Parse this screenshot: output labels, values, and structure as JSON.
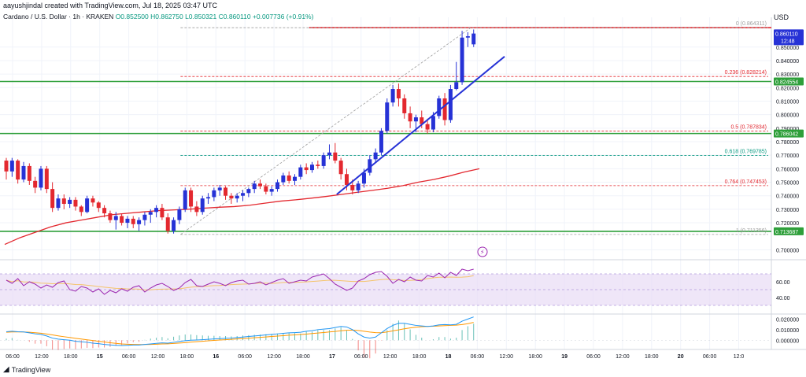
{
  "header": {
    "credit": "aayushjindal created with TradingView.com, Jul 18, 2025 03:47 UTC",
    "symbol": "Cardano / U.S. Dollar · 1h · KRAKEN",
    "ohlc": "O0.852500 H0.862750 L0.850321 C0.860110 +0.007736 (+0.91%)",
    "currency": "USD"
  },
  "footer": {
    "brand": "TradingView",
    "logo_icon": "tradingview-logo-icon"
  },
  "colors": {
    "up": "#2632d6",
    "down": "#e3282f",
    "green_line": "#2e9f3a",
    "red_line": "#e3282f",
    "sma": "#e3282f",
    "trend": "#2632d6",
    "fib": "#e3282f",
    "rsi": "#9c27b0",
    "rsi_band": "#e8dcf5",
    "rsi_ma": "#f5c46b",
    "macd": "#2196f3",
    "signal": "#ff9800",
    "hist": "#26a69a"
  },
  "chart_data": {
    "type": "candlestick",
    "price_axis": {
      "min": 0.695,
      "max": 0.872,
      "ticks": [
        "0.850000",
        "0.840000",
        "0.830000",
        "0.820000",
        "0.810000",
        "0.800000",
        "0.790000",
        "0.780000",
        "0.770000",
        "0.760000",
        "0.750000",
        "0.740000",
        "0.730000",
        "0.720000",
        "0.700000"
      ],
      "tick_values": [
        0.85,
        0.84,
        0.83,
        0.82,
        0.81,
        0.8,
        0.79,
        0.78,
        0.77,
        0.76,
        0.75,
        0.74,
        0.73,
        0.72,
        0.7
      ]
    },
    "price_badges": [
      {
        "value": 0.86011,
        "label": "0.860110",
        "sub": "12:48",
        "color": "#2632d6"
      },
      {
        "value": 0.824554,
        "label": "0.824554",
        "color": "#2e9f3a"
      },
      {
        "value": 0.786042,
        "label": "0.786042",
        "color": "#2e9f3a"
      },
      {
        "value": 0.713687,
        "label": "0.713687",
        "color": "#2e9f3a"
      }
    ],
    "horizontal_lines": [
      {
        "value": 0.864311,
        "color": "#e3282f",
        "x_start": 66
      },
      {
        "value": 0.824554,
        "color": "#2e9f3a",
        "x_start": 0
      },
      {
        "value": 0.786042,
        "color": "#2e9f3a",
        "x_start": 0
      },
      {
        "value": 0.713687,
        "color": "#2e9f3a",
        "x_start": 0
      }
    ],
    "fibonacci": [
      {
        "level": "0",
        "price": "0.864311",
        "value": 0.864311
      },
      {
        "level": "0.236",
        "price": "0.828214",
        "value": 0.828214
      },
      {
        "level": "0.5",
        "price": "0.787834",
        "value": 0.787834
      },
      {
        "level": "0.618",
        "price": "0.769785",
        "value": 0.769785
      },
      {
        "level": "0.764",
        "price": "0.747453",
        "value": 0.747453
      },
      {
        "level": "1",
        "price": "0.711356",
        "value": 0.711356
      }
    ],
    "time_labels": [
      "06:00",
      "12:00",
      "18:00",
      "15",
      "06:00",
      "12:00",
      "18:00",
      "16",
      "06:00",
      "12:00",
      "18:00",
      "17",
      "06:00",
      "12:00",
      "18:00",
      "18",
      "06:00",
      "12:00",
      "18:00",
      "19",
      "06:00",
      "12:00",
      "18:00",
      "20",
      "06:00",
      "12:0"
    ],
    "candles": [
      [
        0.766,
        0.768,
        0.752,
        0.758
      ],
      [
        0.758,
        0.768,
        0.754,
        0.766
      ],
      [
        0.766,
        0.767,
        0.749,
        0.752
      ],
      [
        0.752,
        0.765,
        0.75,
        0.762
      ],
      [
        0.762,
        0.764,
        0.748,
        0.751
      ],
      [
        0.751,
        0.754,
        0.742,
        0.746
      ],
      [
        0.746,
        0.762,
        0.744,
        0.76
      ],
      [
        0.76,
        0.762,
        0.742,
        0.745
      ],
      [
        0.745,
        0.75,
        0.728,
        0.731
      ],
      [
        0.731,
        0.741,
        0.729,
        0.738
      ],
      [
        0.738,
        0.741,
        0.73,
        0.734
      ],
      [
        0.734,
        0.739,
        0.731,
        0.737
      ],
      [
        0.737,
        0.739,
        0.729,
        0.732
      ],
      [
        0.732,
        0.733,
        0.725,
        0.728
      ],
      [
        0.728,
        0.74,
        0.727,
        0.738
      ],
      [
        0.738,
        0.74,
        0.732,
        0.735
      ],
      [
        0.735,
        0.736,
        0.728,
        0.731
      ],
      [
        0.731,
        0.733,
        0.724,
        0.727
      ],
      [
        0.727,
        0.729,
        0.72,
        0.722
      ],
      [
        0.722,
        0.728,
        0.715,
        0.725
      ],
      [
        0.725,
        0.727,
        0.718,
        0.72
      ],
      [
        0.72,
        0.725,
        0.716,
        0.723
      ],
      [
        0.723,
        0.725,
        0.716,
        0.719
      ],
      [
        0.719,
        0.724,
        0.714,
        0.722
      ],
      [
        0.722,
        0.728,
        0.718,
        0.726
      ],
      [
        0.726,
        0.73,
        0.72,
        0.728
      ],
      [
        0.728,
        0.733,
        0.724,
        0.731
      ],
      [
        0.731,
        0.734,
        0.722,
        0.724
      ],
      [
        0.724,
        0.727,
        0.712,
        0.714
      ],
      [
        0.714,
        0.724,
        0.712,
        0.722
      ],
      [
        0.722,
        0.732,
        0.719,
        0.73
      ],
      [
        0.73,
        0.746,
        0.728,
        0.744
      ],
      [
        0.744,
        0.746,
        0.728,
        0.732
      ],
      [
        0.732,
        0.736,
        0.725,
        0.728
      ],
      [
        0.728,
        0.74,
        0.726,
        0.738
      ],
      [
        0.738,
        0.742,
        0.734,
        0.739
      ],
      [
        0.739,
        0.746,
        0.736,
        0.744
      ],
      [
        0.744,
        0.748,
        0.74,
        0.746
      ],
      [
        0.746,
        0.747,
        0.737,
        0.74
      ],
      [
        0.74,
        0.742,
        0.734,
        0.738
      ],
      [
        0.738,
        0.742,
        0.735,
        0.74
      ],
      [
        0.74,
        0.744,
        0.736,
        0.742
      ],
      [
        0.742,
        0.746,
        0.739,
        0.745
      ],
      [
        0.745,
        0.751,
        0.742,
        0.749
      ],
      [
        0.749,
        0.752,
        0.745,
        0.747
      ],
      [
        0.747,
        0.749,
        0.741,
        0.743
      ],
      [
        0.743,
        0.747,
        0.74,
        0.745
      ],
      [
        0.745,
        0.752,
        0.743,
        0.75
      ],
      [
        0.75,
        0.757,
        0.748,
        0.755
      ],
      [
        0.755,
        0.758,
        0.749,
        0.751
      ],
      [
        0.751,
        0.756,
        0.748,
        0.754
      ],
      [
        0.754,
        0.763,
        0.752,
        0.761
      ],
      [
        0.761,
        0.764,
        0.756,
        0.759
      ],
      [
        0.759,
        0.765,
        0.757,
        0.763
      ],
      [
        0.763,
        0.766,
        0.76,
        0.762
      ],
      [
        0.762,
        0.772,
        0.76,
        0.77
      ],
      [
        0.77,
        0.778,
        0.767,
        0.772
      ],
      [
        0.772,
        0.779,
        0.764,
        0.766
      ],
      [
        0.766,
        0.768,
        0.752,
        0.756
      ],
      [
        0.756,
        0.76,
        0.744,
        0.748
      ],
      [
        0.748,
        0.752,
        0.741,
        0.744
      ],
      [
        0.744,
        0.751,
        0.742,
        0.749
      ],
      [
        0.749,
        0.76,
        0.746,
        0.757
      ],
      [
        0.757,
        0.77,
        0.755,
        0.767
      ],
      [
        0.767,
        0.775,
        0.765,
        0.772
      ],
      [
        0.772,
        0.79,
        0.77,
        0.788
      ],
      [
        0.788,
        0.812,
        0.786,
        0.809
      ],
      [
        0.809,
        0.822,
        0.806,
        0.819
      ],
      [
        0.819,
        0.823,
        0.806,
        0.812
      ],
      [
        0.812,
        0.815,
        0.797,
        0.801
      ],
      [
        0.801,
        0.806,
        0.79,
        0.795
      ],
      [
        0.795,
        0.8,
        0.787,
        0.798
      ],
      [
        0.798,
        0.803,
        0.79,
        0.793
      ],
      [
        0.793,
        0.797,
        0.786,
        0.789
      ],
      [
        0.789,
        0.802,
        0.787,
        0.799
      ],
      [
        0.799,
        0.814,
        0.797,
        0.812
      ],
      [
        0.812,
        0.816,
        0.792,
        0.796
      ],
      [
        0.796,
        0.822,
        0.794,
        0.819
      ],
      [
        0.819,
        0.839,
        0.818,
        0.824
      ],
      [
        0.824,
        0.862,
        0.822,
        0.857
      ],
      [
        0.857,
        0.861,
        0.85,
        0.858
      ],
      [
        0.852,
        0.863,
        0.85,
        0.86
      ]
    ],
    "sma": [
      0.704,
      0.709,
      0.713,
      0.717,
      0.72,
      0.722,
      0.724,
      0.726,
      0.727,
      0.728,
      0.729,
      0.7295,
      0.73,
      0.7308,
      0.7315,
      0.732,
      0.733,
      0.7345,
      0.736,
      0.737,
      0.7382,
      0.7395,
      0.741,
      0.7425,
      0.744,
      0.7455,
      0.7475,
      0.75,
      0.752,
      0.7545,
      0.7575,
      0.76
    ],
    "trendline": {
      "from": [
        0.741,
        57
      ],
      "to": [
        0.843,
        85
      ]
    },
    "rsi": {
      "ticks": [
        "60.00",
        "40.00"
      ],
      "values": [
        62,
        58,
        64,
        55,
        60,
        57,
        52,
        56,
        53,
        59,
        61,
        50,
        48,
        54,
        52,
        47,
        51,
        44,
        49,
        46,
        51,
        48,
        53,
        55,
        47,
        52,
        56,
        58,
        54,
        49,
        52,
        59,
        63,
        55,
        54,
        57,
        60,
        58,
        55,
        59,
        61,
        62,
        57,
        58,
        60,
        56,
        59,
        62,
        64,
        58,
        60,
        62,
        61,
        66,
        68,
        70,
        64,
        57,
        53,
        49,
        52,
        61,
        64,
        69,
        72,
        73,
        67,
        58,
        63,
        60,
        66,
        62,
        61,
        68,
        66,
        71,
        65,
        72,
        68,
        76,
        74,
        76
      ]
    },
    "macd": {
      "ticks": [
        "0.020000",
        "0.010000",
        "0.000000"
      ],
      "macd": [
        0.008,
        0.0085,
        0.008,
        0.0078,
        0.007,
        0.006,
        0.0055,
        0.004,
        0.002,
        0.001,
        0.0005,
        0.0,
        -0.001,
        -0.0015,
        -0.002,
        -0.0028,
        -0.0033,
        -0.004,
        -0.0045,
        -0.0048,
        -0.005,
        -0.0048,
        -0.0046,
        -0.0046,
        -0.004,
        -0.0035,
        -0.003,
        -0.0025,
        -0.0028,
        -0.002,
        -0.0012,
        -0.0005,
        0.0,
        0.0002,
        0.0005,
        0.0008,
        0.0012,
        0.0015,
        0.0018,
        0.002,
        0.0025,
        0.003,
        0.0035,
        0.004,
        0.0045,
        0.005,
        0.0055,
        0.006,
        0.0065,
        0.007,
        0.0072,
        0.0075,
        0.0085,
        0.009,
        0.01,
        0.0105,
        0.011,
        0.012,
        0.013,
        0.0125,
        0.01,
        0.006,
        0.003,
        0.002,
        0.003,
        0.007,
        0.011,
        0.014,
        0.016,
        0.016,
        0.015,
        0.014,
        0.0135,
        0.013,
        0.0135,
        0.0145,
        0.0148,
        0.0145,
        0.015,
        0.018,
        0.02,
        0.022
      ],
      "signal": [
        0.0075,
        0.0078,
        0.0079,
        0.0078,
        0.0075,
        0.0071,
        0.0066,
        0.0059,
        0.005,
        0.0041,
        0.0033,
        0.0026,
        0.0018,
        0.0011,
        0.0004,
        -0.0003,
        -0.001,
        -0.0017,
        -0.0024,
        -0.003,
        -0.0035,
        -0.0038,
        -0.004,
        -0.0041,
        -0.0041,
        -0.004,
        -0.0038,
        -0.0035,
        -0.0034,
        -0.0031,
        -0.0027,
        -0.0023,
        -0.0018,
        -0.0014,
        -0.001,
        -0.0006,
        -0.0002,
        0.0002,
        0.0005,
        0.0008,
        0.0012,
        0.0015,
        0.0019,
        0.0023,
        0.0027,
        0.0031,
        0.0035,
        0.0039,
        0.0043,
        0.0047,
        0.005,
        0.0054,
        0.0058,
        0.0063,
        0.0068,
        0.0073,
        0.0078,
        0.0083,
        0.0089,
        0.0094,
        0.0096,
        0.0092,
        0.0085,
        0.0077,
        0.0072,
        0.0071,
        0.0078,
        0.0088,
        0.0098,
        0.0108,
        0.0116,
        0.0123,
        0.0127,
        0.013,
        0.0132,
        0.0135,
        0.0138,
        0.014,
        0.0142,
        0.0148,
        0.0156,
        0.0168
      ]
    }
  }
}
